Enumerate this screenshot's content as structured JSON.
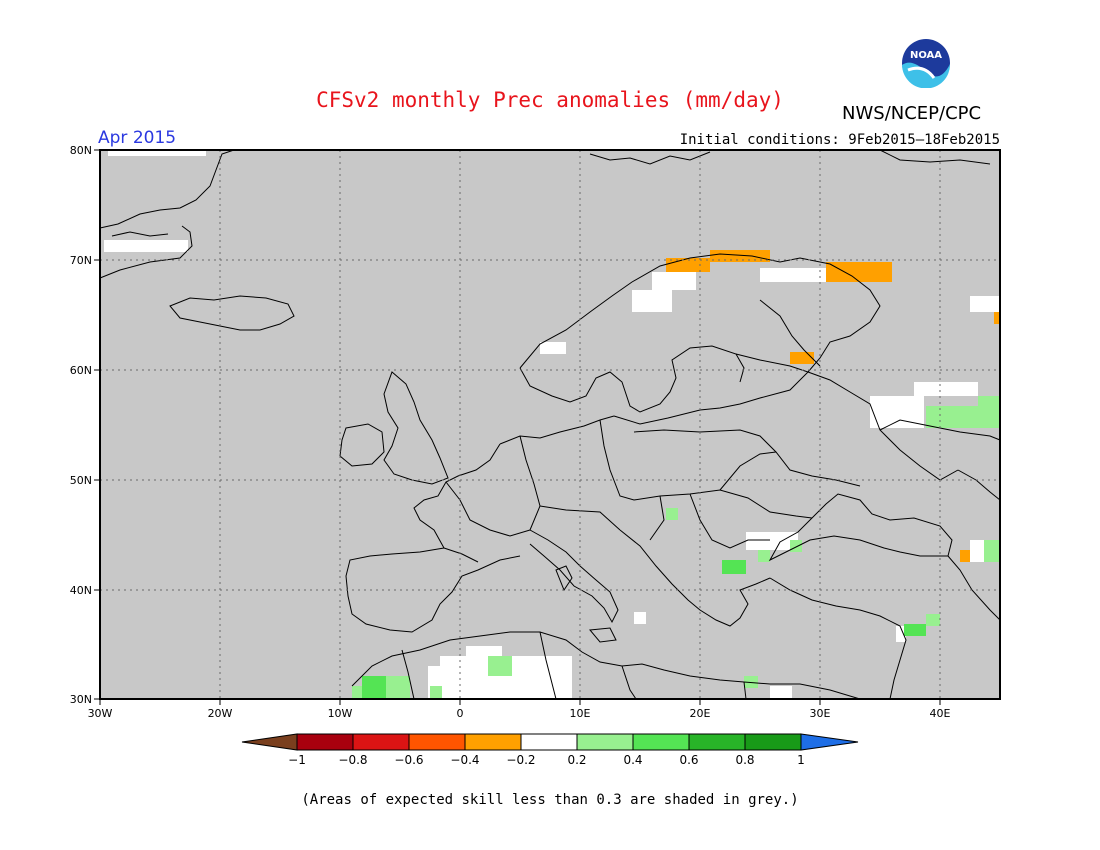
{
  "header": {
    "title": "CFSv2 monthly Prec anomalies (mm/day)",
    "agency": "NWS/NCEP/CPC",
    "month": "Apr 2015",
    "initial_conditions": "Initial conditions: 9Feb2015–18Feb2015",
    "logo_text": "NOAA"
  },
  "map": {
    "lat_labels": [
      "80N",
      "70N",
      "60N",
      "50N",
      "40N",
      "30N"
    ],
    "lon_labels": [
      "30W",
      "20W",
      "10W",
      "0",
      "10E",
      "20E",
      "30E",
      "40E"
    ],
    "background_color": "#c8c8c8"
  },
  "legend": {
    "tick_labels": [
      "−1",
      "−0.8",
      "−0.6",
      "−0.4",
      "−0.2",
      "0.2",
      "0.4",
      "0.6",
      "0.8",
      "1"
    ],
    "colors": [
      "#7a3f1e",
      "#a8000e",
      "#db1414",
      "#ff5500",
      "#ffa000",
      "#ffffff",
      "#98f090",
      "#54e454",
      "#28b428",
      "#189a18",
      "#1e6ee6"
    ]
  },
  "footer": {
    "note": "(Areas of expected skill less than 0.3 are shaded in grey.)"
  }
}
